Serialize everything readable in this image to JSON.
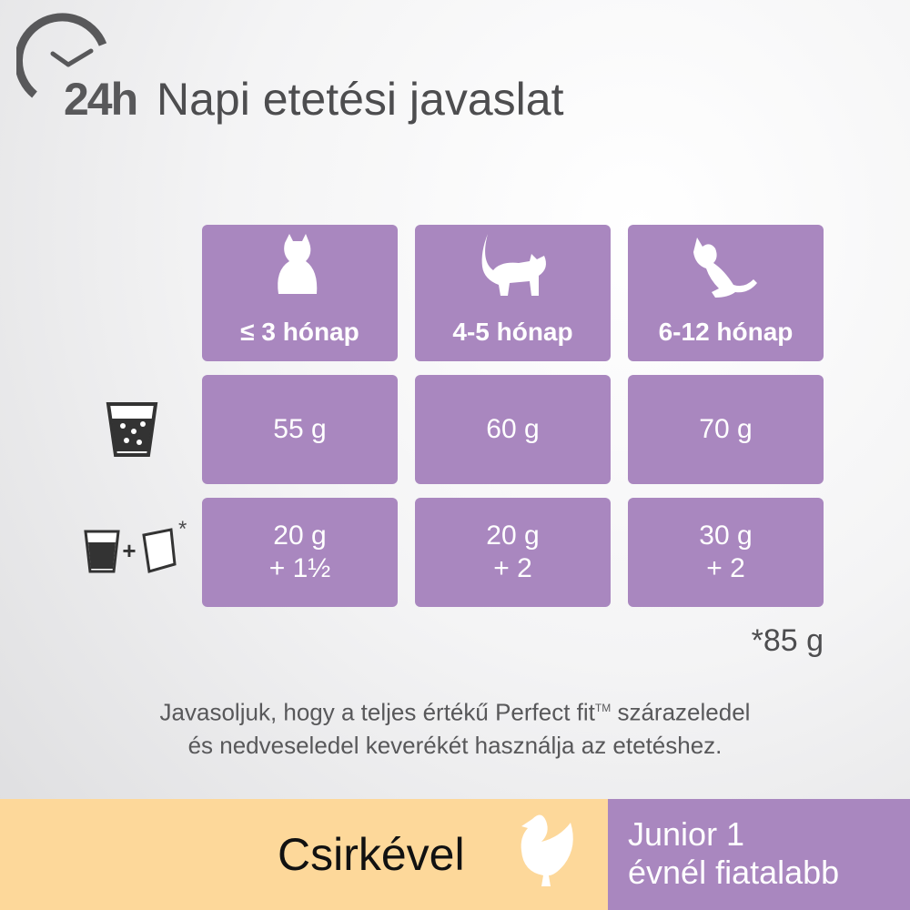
{
  "header": {
    "badge": "24h",
    "title": "Napi etetési javaslat"
  },
  "table": {
    "columns": [
      "≤ 3 hónap",
      "4-5 hónap",
      "6-12 hónap"
    ],
    "dry": [
      "55 g",
      "60 g",
      "70 g"
    ],
    "mixed": [
      [
        "20 g",
        "+ 1½"
      ],
      [
        "20 g",
        "+ 2"
      ],
      [
        "30 g",
        "+ 2"
      ]
    ],
    "mixed_marker": "*"
  },
  "footnote": "*85 g",
  "note": [
    "Javasoljuk, hogy a teljes értékű Perfect fit",
    "TM",
    " szárazeledel",
    "és nedveseledel keverékét használja az etetéshez."
  ],
  "footer": {
    "flavor": "Csirkével",
    "age": [
      "Junior 1",
      "évnél fiatalabb"
    ]
  }
}
